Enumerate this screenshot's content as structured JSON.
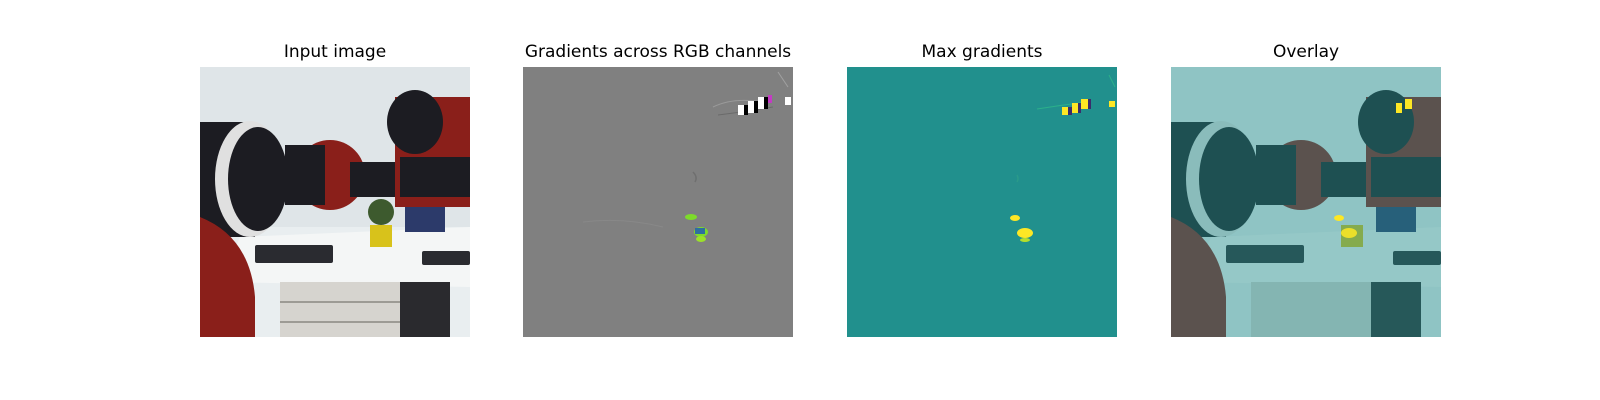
{
  "panels": [
    {
      "title": "Input image"
    },
    {
      "title": "Gradients across RGB channels"
    },
    {
      "title": "Max gradients"
    },
    {
      "title": "Overlay"
    }
  ],
  "colors": {
    "background": "#ffffff",
    "gradient_gray": "#808080",
    "max_gradient_teal": "#21908d",
    "overlay_tint": "#7fc9c4",
    "highlight_yellow": "#fde725",
    "highlight_green": "#7ddb2a",
    "robot_red": "#8a1f1a",
    "robot_dark": "#1c1c22"
  }
}
